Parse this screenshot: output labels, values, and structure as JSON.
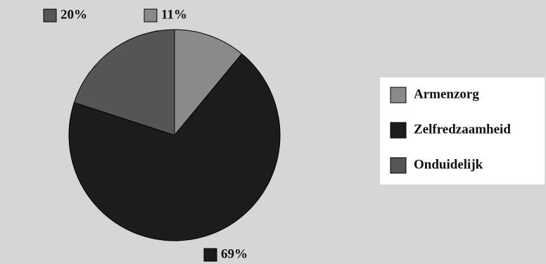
{
  "chart_data": {
    "type": "pie",
    "categories": [
      "Armenzorg",
      "Zelfredzaamheid",
      "Onduidelijk"
    ],
    "values": [
      11,
      69,
      20
    ],
    "value_labels": [
      "11%",
      "69%",
      "20%"
    ],
    "colors": [
      "#8a8a8a",
      "#1c1c1c",
      "#555555"
    ],
    "legend": "right"
  }
}
